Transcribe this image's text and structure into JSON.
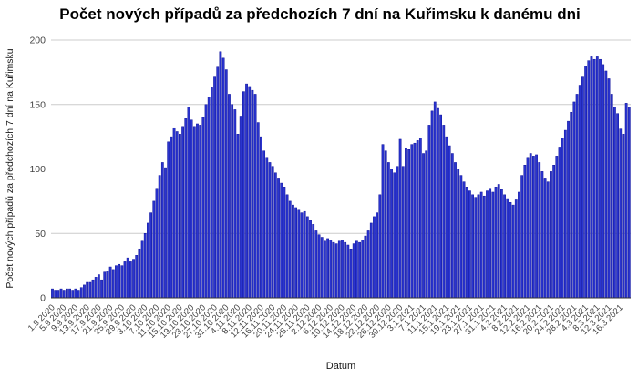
{
  "page": {
    "background": "#ffffff"
  },
  "chart": {
    "title": "Počet nových případů za předchozích 7 dní na Kuřimsku k danému dni",
    "y_axis_title": "Počet nových případů za předchozích 7 dní na Kuřimsku",
    "x_axis_title": "Datum"
  },
  "chart_data": {
    "type": "bar",
    "title": "Počet nových případů za předchozích 7 dní na Kuřimsku k danému dni",
    "xlabel": "Datum",
    "ylabel": "Počet nových případů za předchozích 7 dní na Kuřimsku",
    "ylim": [
      0,
      200
    ],
    "y_ticks": [
      0,
      50,
      100,
      150,
      200
    ],
    "grid": "horizontal",
    "legend": "none",
    "bar_color": "#2a34cf",
    "bar_edge_color": "#10149b",
    "gridline_color": "#cccccc",
    "axis_line_color": "#333333",
    "x_tick_every": 4,
    "x_tick_labels": [
      "1.9.2020",
      "5.9.2020",
      "9.9.2020",
      "13.9.2020",
      "17.9.2020",
      "21.9.2020",
      "25.9.2020",
      "29.9.2020",
      "3.10.2020",
      "7.10.2020",
      "11.10.2020",
      "15.10.2020",
      "19.10.2020",
      "23.10.2020",
      "27.10.2020",
      "31.10.2020",
      "4.11.2020",
      "8.11.2020",
      "12.11.2020",
      "16.11.2020",
      "20.11.2020",
      "24.11.2020",
      "28.11.2020",
      "2.12.2020",
      "6.12.2020",
      "10.12.2020",
      "14.12.2020",
      "18.12.2020",
      "22.12.2020",
      "26.12.2020",
      "30.12.2020",
      "3.1.2021",
      "7.1.2021",
      "11.1.2021",
      "15.1.2021",
      "19.1.2021",
      "23.1.2021",
      "27.1.2021",
      "31.1.2021",
      "4.2.2021",
      "8.2.2021",
      "12.2.2021",
      "16.2.2021",
      "20.2.2021",
      "24.2.2021",
      "28.2.2021",
      "4.3.2021",
      "8.3.2021",
      "12.3.2021",
      "16.3.2021"
    ],
    "values": [
      7,
      6,
      6,
      7,
      6,
      7,
      7,
      6,
      7,
      6,
      8,
      10,
      12,
      12,
      14,
      16,
      18,
      14,
      20,
      21,
      24,
      22,
      25,
      26,
      25,
      28,
      31,
      28,
      30,
      33,
      38,
      44,
      50,
      58,
      66,
      75,
      85,
      95,
      105,
      101,
      121,
      125,
      132,
      129,
      127,
      133,
      139,
      148,
      138,
      133,
      135,
      134,
      140,
      150,
      156,
      163,
      172,
      179,
      191,
      186,
      177,
      158,
      150,
      146,
      127,
      141,
      160,
      166,
      164,
      161,
      158,
      136,
      125,
      114,
      109,
      105,
      102,
      97,
      93,
      89,
      86,
      80,
      75,
      72,
      70,
      68,
      66,
      67,
      63,
      60,
      57,
      52,
      49,
      47,
      44,
      46,
      45,
      43,
      42,
      44,
      45,
      43,
      41,
      38,
      42,
      44,
      43,
      45,
      48,
      52,
      58,
      63,
      66,
      80,
      119,
      114,
      105,
      100,
      97,
      102,
      123,
      102,
      116,
      115,
      119,
      120,
      122,
      124,
      112,
      114,
      134,
      145,
      152,
      147,
      142,
      134,
      125,
      118,
      112,
      105,
      100,
      95,
      90,
      86,
      83,
      80,
      78,
      80,
      82,
      79,
      83,
      85,
      82,
      86,
      88,
      84,
      80,
      77,
      74,
      72,
      76,
      82,
      95,
      103,
      109,
      112,
      110,
      111,
      105,
      98,
      93,
      90,
      98,
      103,
      110,
      117,
      124,
      130,
      137,
      144,
      152,
      158,
      165,
      172,
      180,
      184,
      187,
      185,
      187,
      185,
      181,
      176,
      170,
      158,
      148,
      143,
      131,
      127,
      151,
      148
    ]
  }
}
